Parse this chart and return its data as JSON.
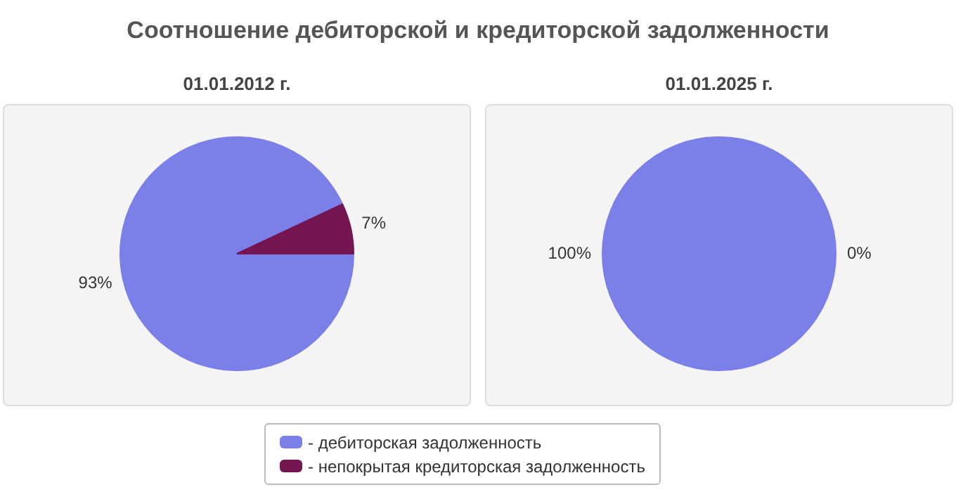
{
  "chart_data": [
    {
      "type": "pie",
      "title": "Соотношение дебиторской и кредиторской задолженности",
      "subtitle": "01.01.2012 г.",
      "categories": [
        "- дебиторская задолженность",
        "- непокрытая кредиторская задолженность"
      ],
      "values": [
        93,
        7
      ],
      "value_labels": [
        "93%",
        "7%"
      ],
      "colors": [
        "#7b7fe8",
        "#751552"
      ],
      "legend": "bottom"
    },
    {
      "type": "pie",
      "subtitle": "01.01.2025 г.",
      "categories": [
        null,
        null
      ],
      "values": [
        100,
        0
      ],
      "value_labels": [
        "100%",
        "0%"
      ],
      "colors": [
        "#7b7fe8",
        "#751552"
      ]
    }
  ]
}
